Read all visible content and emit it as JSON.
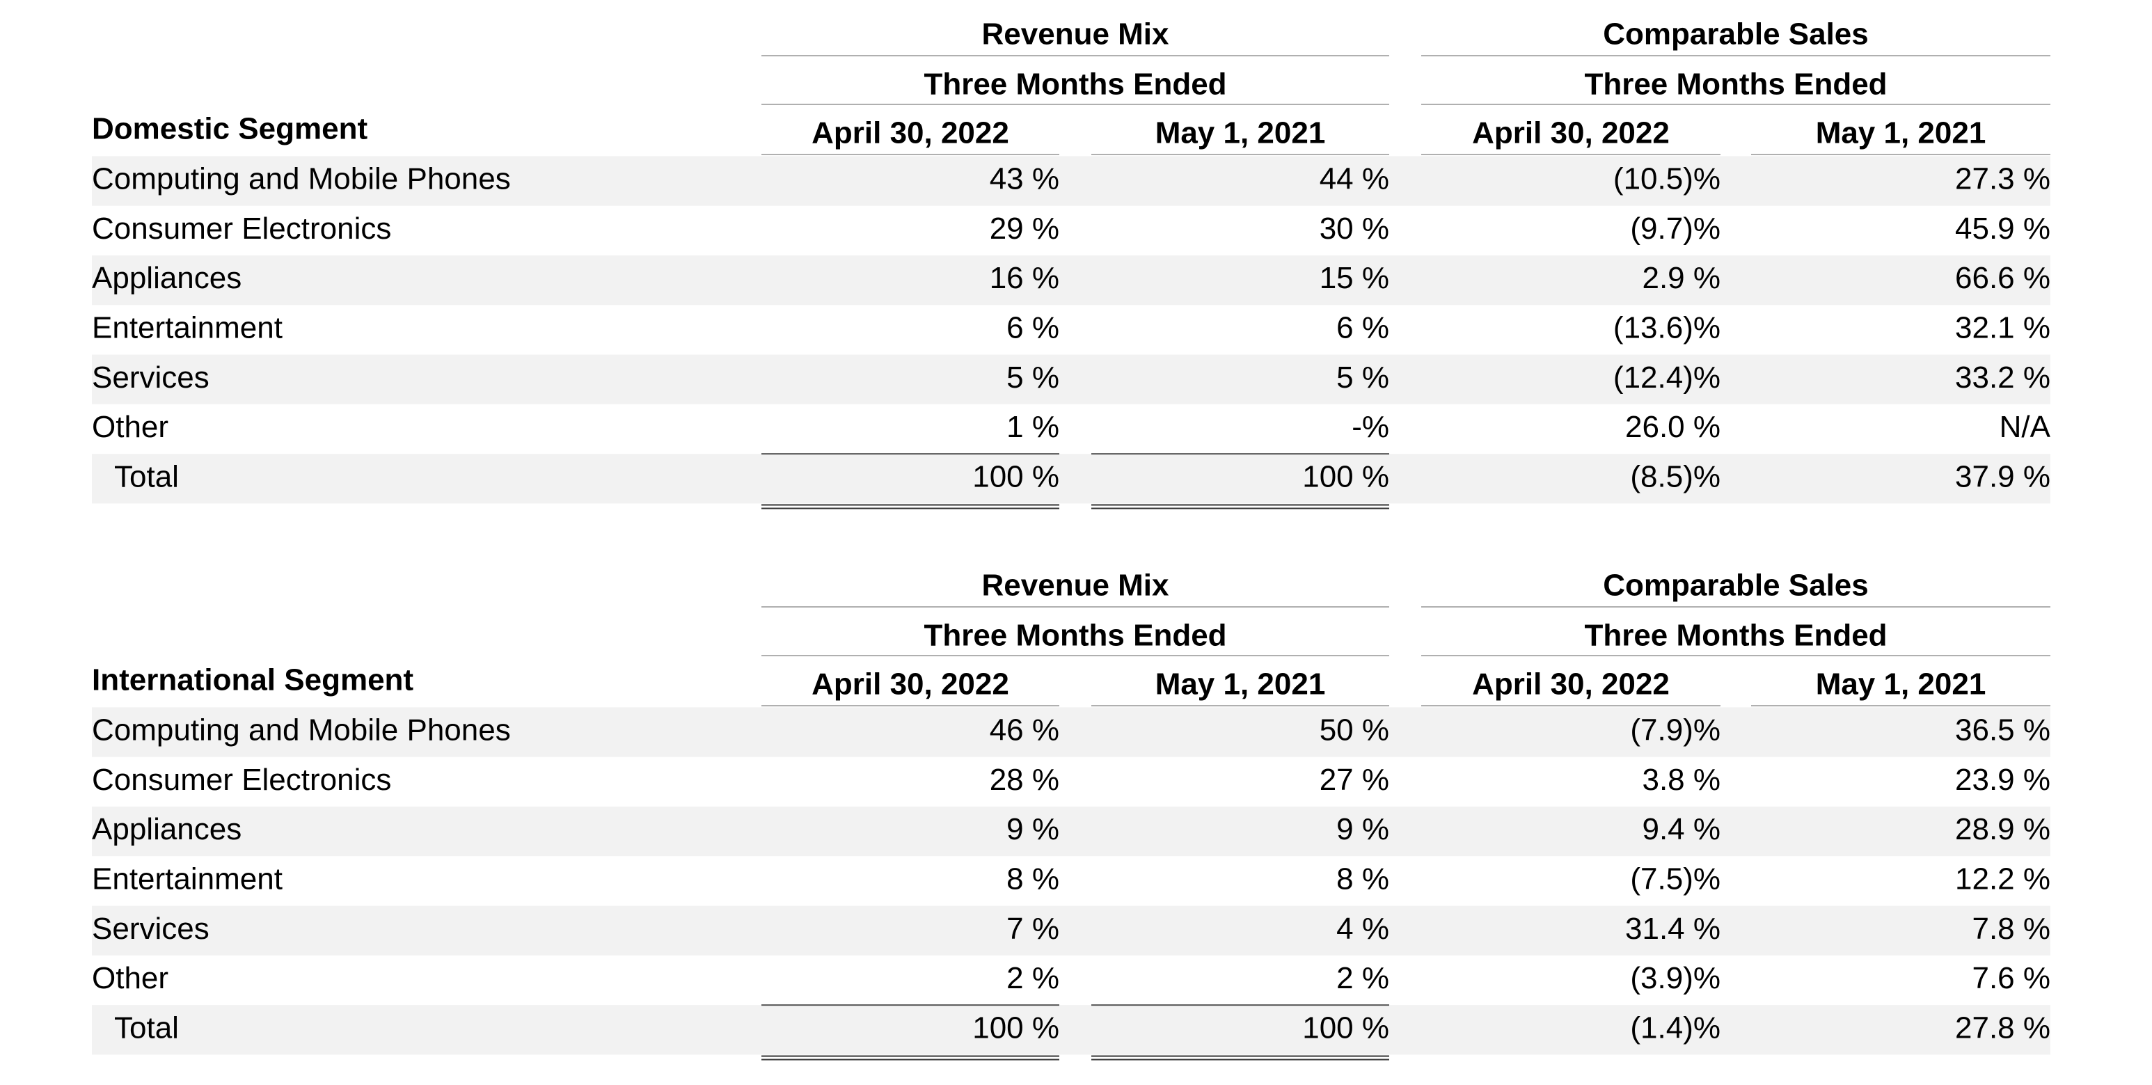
{
  "tables": [
    {
      "segment": "Domestic Segment",
      "groups": [
        {
          "title": "Revenue Mix",
          "subtitle": "Three Months Ended",
          "columns": [
            "April 30, 2022",
            "May 1, 2021"
          ]
        },
        {
          "title": "Comparable Sales",
          "subtitle": "Three Months Ended",
          "columns": [
            "April 30, 2022",
            "May 1, 2021"
          ]
        }
      ],
      "rows": [
        {
          "label": "Computing and Mobile Phones",
          "values": [
            "43 %",
            "44 %",
            "(10.5)%",
            "27.3 %"
          ]
        },
        {
          "label": "Consumer Electronics",
          "values": [
            "29 %",
            "30 %",
            "(9.7)%",
            "45.9 %"
          ]
        },
        {
          "label": "Appliances",
          "values": [
            "16 %",
            "15 %",
            "2.9 %",
            "66.6 %"
          ]
        },
        {
          "label": "Entertainment",
          "values": [
            "6 %",
            "6 %",
            "(13.6)%",
            "32.1 %"
          ]
        },
        {
          "label": "Services",
          "values": [
            "5 %",
            "5 %",
            "(12.4)%",
            "33.2 %"
          ]
        },
        {
          "label": "Other",
          "values": [
            "1 %",
            "-%",
            "26.0 %",
            "N/A"
          ]
        },
        {
          "label": "Total",
          "values": [
            "100 %",
            "100 %",
            "(8.5)%",
            "37.9 %"
          ]
        }
      ]
    },
    {
      "segment": "International Segment",
      "groups": [
        {
          "title": "Revenue Mix",
          "subtitle": "Three Months Ended",
          "columns": [
            "April 30, 2022",
            "May 1, 2021"
          ]
        },
        {
          "title": "Comparable Sales",
          "subtitle": "Three Months Ended",
          "columns": [
            "April 30, 2022",
            "May 1, 2021"
          ]
        }
      ],
      "rows": [
        {
          "label": "Computing and Mobile Phones",
          "values": [
            "46 %",
            "50 %",
            "(7.9)%",
            "36.5 %"
          ]
        },
        {
          "label": "Consumer Electronics",
          "values": [
            "28 %",
            "27 %",
            "3.8 %",
            "23.9 %"
          ]
        },
        {
          "label": "Appliances",
          "values": [
            "9 %",
            "9 %",
            "9.4 %",
            "28.9 %"
          ]
        },
        {
          "label": "Entertainment",
          "values": [
            "8 %",
            "8 %",
            "(7.5)%",
            "12.2 %"
          ]
        },
        {
          "label": "Services",
          "values": [
            "7 %",
            "4 %",
            "31.4 %",
            "7.8 %"
          ]
        },
        {
          "label": "Other",
          "values": [
            "2 %",
            "2 %",
            "(3.9)%",
            "7.6 %"
          ]
        },
        {
          "label": "Total",
          "values": [
            "100 %",
            "100 %",
            "(1.4)%",
            "27.8 %"
          ]
        }
      ]
    }
  ]
}
